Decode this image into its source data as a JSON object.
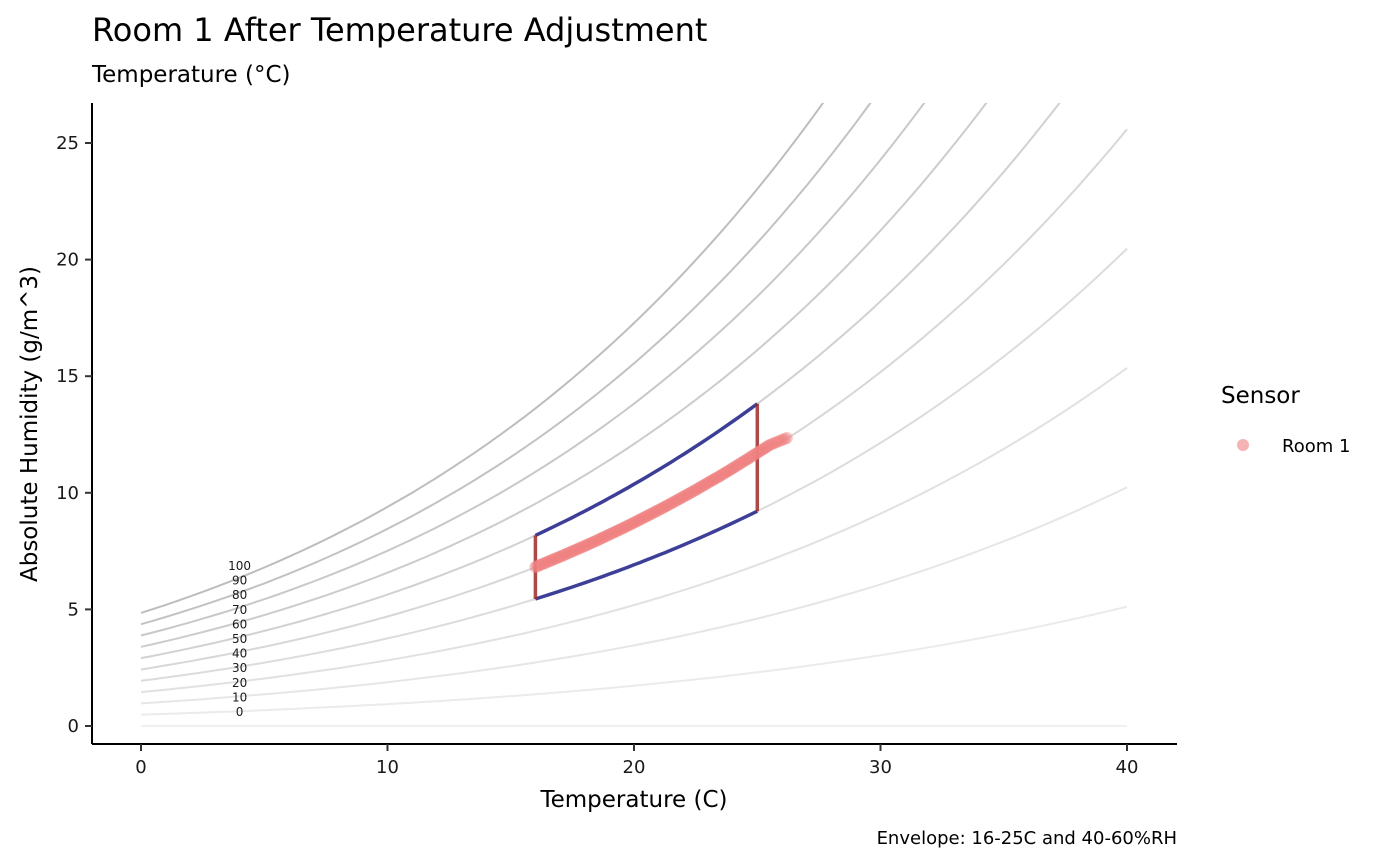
{
  "chart_data": {
    "type": "line",
    "title": "Room 1 After Temperature Adjustment",
    "subtitle": "Temperature (°C)",
    "xlabel": "Temperature (C)",
    "ylabel": "Absolute Humidity (g/m^3)",
    "caption": "Envelope: 16-25C and 40-60%RH",
    "xlim": [
      -2,
      42
    ],
    "ylim": [
      -0.8,
      26.8
    ],
    "x_ticks": [
      "0",
      "10",
      "20",
      "30",
      "40"
    ],
    "y_ticks": [
      "0",
      "5",
      "10",
      "15",
      "20",
      "25"
    ],
    "grid": false,
    "background_curves": {
      "description_rh_levels": [
        0,
        10,
        20,
        30,
        40,
        50,
        60,
        70,
        80,
        90,
        100
      ],
      "labels": [
        "0",
        "10",
        "20",
        "30",
        "40",
        "50",
        "60",
        "70",
        "80",
        "90",
        "100"
      ],
      "x_range": [
        0,
        40
      ],
      "label_x": 4
    },
    "envelope": {
      "temp_range": [
        16,
        25
      ],
      "rh_range": [
        40,
        60
      ],
      "curve_color": "#2b2e8f",
      "side_color": "#9e2a2a"
    },
    "series": [
      {
        "name": "Room 1",
        "color": "#f08080",
        "points": [
          [
            16.0,
            6.82
          ],
          [
            16.5,
            7.04
          ],
          [
            17.0,
            7.26
          ],
          [
            17.5,
            7.49
          ],
          [
            18.0,
            7.72
          ],
          [
            18.5,
            7.96
          ],
          [
            19.0,
            8.21
          ],
          [
            19.5,
            8.46
          ],
          [
            20.0,
            8.72
          ],
          [
            20.5,
            8.99
          ],
          [
            21.0,
            9.26
          ],
          [
            21.5,
            9.54
          ],
          [
            22.0,
            9.83
          ],
          [
            22.5,
            10.12
          ],
          [
            23.0,
            10.43
          ],
          [
            23.5,
            10.73
          ],
          [
            24.0,
            11.05
          ],
          [
            24.5,
            11.38
          ],
          [
            25.0,
            11.71
          ],
          [
            25.5,
            12.05
          ],
          [
            26.2,
            12.35
          ]
        ]
      }
    ],
    "legend": {
      "title": "Sensor",
      "position": "right"
    }
  }
}
